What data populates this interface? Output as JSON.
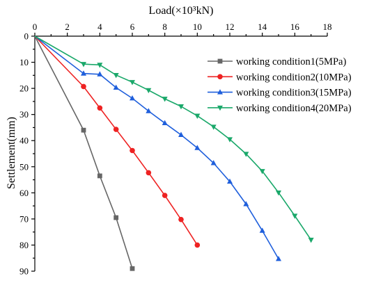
{
  "chart_data": {
    "type": "line",
    "xlabel": "Load(×10³kN)",
    "ylabel": "Settlement(mm)",
    "xlim": [
      0,
      18
    ],
    "ylim": [
      0,
      90
    ],
    "y_inverted": true,
    "x_axis_position": "top",
    "x_ticks": [
      "0",
      "2",
      "4",
      "6",
      "8",
      "10",
      "12",
      "14",
      "16",
      "18"
    ],
    "y_ticks": [
      "0",
      "10",
      "20",
      "30",
      "40",
      "50",
      "60",
      "70",
      "80",
      "90"
    ],
    "grid": false,
    "legend_position": "top-right",
    "series": [
      {
        "name": "working condition1(5MPa)",
        "color": "#666666",
        "marker": "square",
        "x": [
          0,
          3,
          4,
          5,
          6
        ],
        "y": [
          0,
          36,
          53.5,
          69.5,
          89
        ]
      },
      {
        "name": "working condition2(10MPa)",
        "color": "#ee2222",
        "marker": "circle",
        "x": [
          0,
          3,
          4,
          5,
          6,
          7,
          8,
          9,
          10
        ],
        "y": [
          0,
          19.3,
          27.5,
          35.7,
          43.8,
          52.3,
          61,
          70.2,
          80
        ]
      },
      {
        "name": "working condition3(15MPa)",
        "color": "#1f5fdc",
        "marker": "triangle-up",
        "x": [
          0,
          3,
          4,
          5,
          6,
          7,
          8,
          9,
          10,
          11,
          12,
          13,
          14,
          15
        ],
        "y": [
          0,
          14.3,
          14.6,
          19.7,
          23.8,
          28.7,
          33.3,
          37.8,
          42.8,
          48.6,
          55.7,
          64.3,
          74.5,
          85.3
        ]
      },
      {
        "name": "working condition4(20MPa)",
        "color": "#1aa86a",
        "marker": "triangle-down",
        "x": [
          0,
          3,
          4,
          5,
          6,
          7,
          8,
          9,
          10,
          11,
          12,
          13,
          14,
          15,
          16,
          17
        ],
        "y": [
          0,
          10.7,
          11,
          14.9,
          17.6,
          20.7,
          24,
          26.9,
          30.5,
          34.7,
          39.5,
          45.1,
          51.7,
          59.9,
          68.8,
          78
        ]
      }
    ]
  }
}
